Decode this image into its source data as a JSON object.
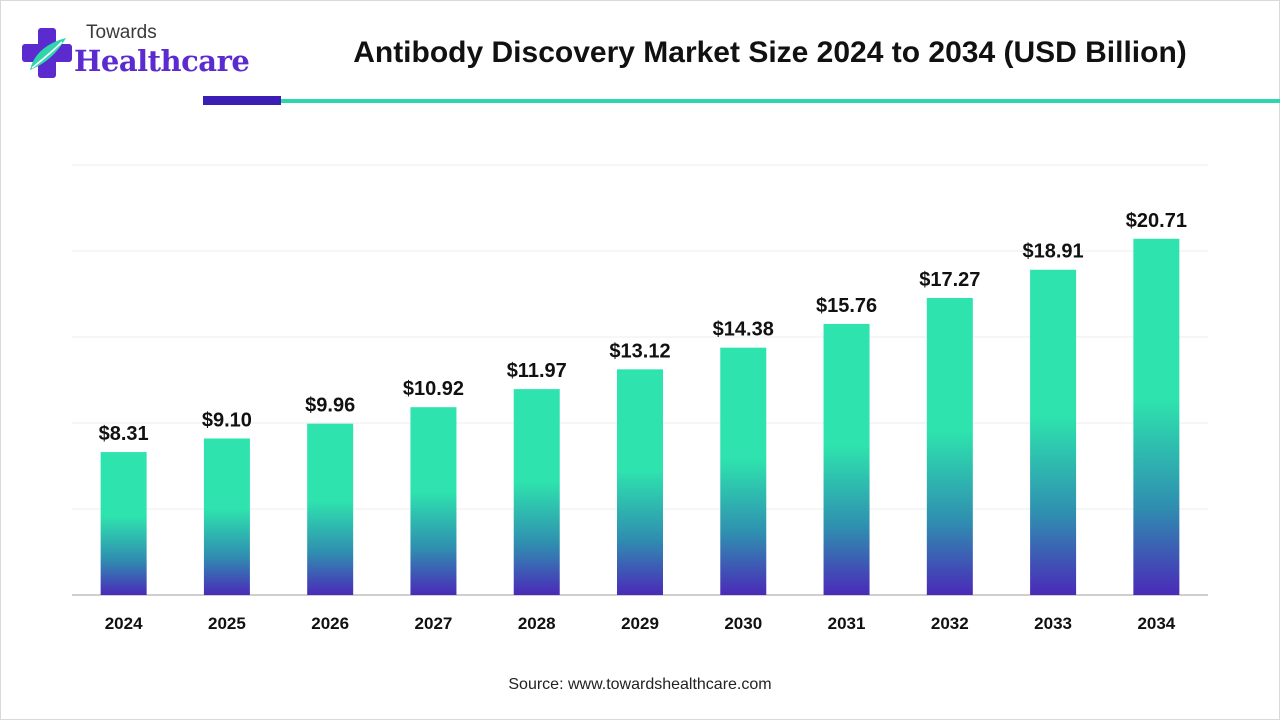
{
  "brand": {
    "top": "Towards",
    "main": "Healthcare"
  },
  "colors": {
    "bar_top": "#2ee3ae",
    "bar_mid": "#2f8fb0",
    "bar_bottom": "#4a2ab8",
    "rule_left": "#3b1fb5",
    "rule_right": "#2fd6ac",
    "logo_purple": "#5b2bd0",
    "logo_teal": "#2fd6ac"
  },
  "chart_data": {
    "type": "bar",
    "title": "Antibody Discovery Market Size 2024 to 2034 (USD Billion)",
    "categories": [
      "2024",
      "2025",
      "2026",
      "2027",
      "2028",
      "2029",
      "2030",
      "2031",
      "2032",
      "2033",
      "2034"
    ],
    "values": [
      8.31,
      9.1,
      9.96,
      10.92,
      11.97,
      13.12,
      14.38,
      15.76,
      17.27,
      18.91,
      20.71
    ],
    "data_labels": [
      "$8.31",
      "$9.10",
      "$9.96",
      "$10.92",
      "$11.97",
      "$13.12",
      "$14.38",
      "$15.76",
      "$17.27",
      "$18.91",
      "$20.71"
    ],
    "xlabel": "",
    "ylabel": "",
    "ylim": [
      0,
      25
    ],
    "grid": true,
    "legend": "none"
  },
  "source": "Source: www.towardshealthcare.com"
}
